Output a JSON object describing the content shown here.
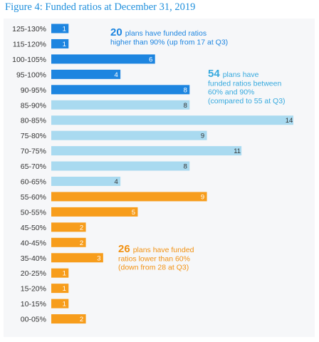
{
  "title": "Figure 4: Funded ratios at December 31, 2019",
  "colors": {
    "above_90": "#1d85e0",
    "between_60_90": "#a9daf0",
    "below_60": "#f79d1c",
    "text_dark": "#333333"
  },
  "chart_data": {
    "type": "bar",
    "orientation": "horizontal",
    "title": "Figure 4: Funded ratios at December 31, 2019",
    "xlabel": "",
    "ylabel": "",
    "xlim": [
      0,
      14
    ],
    "grid": false,
    "categories": [
      "125-130%",
      "115-120%",
      "100-105%",
      "95-100%",
      "90-95%",
      "85-90%",
      "80-85%",
      "75-80%",
      "70-75%",
      "65-70%",
      "60-65%",
      "55-60%",
      "50-55%",
      "45-50%",
      "40-45%",
      "35-40%",
      "20-25%",
      "15-20%",
      "10-15%",
      "00-05%"
    ],
    "values": [
      1,
      1,
      6,
      4,
      8,
      8,
      14,
      9,
      11,
      8,
      4,
      9,
      5,
      2,
      2,
      3,
      1,
      1,
      1,
      2
    ],
    "groups": [
      "above",
      "above",
      "above",
      "above",
      "above",
      "mid",
      "mid",
      "mid",
      "mid",
      "mid",
      "mid",
      "below",
      "below",
      "below",
      "below",
      "below",
      "below",
      "below",
      "below",
      "below"
    ]
  },
  "annotations": [
    {
      "group": "above",
      "number": "20",
      "lines": [
        "plans have funded ratios",
        "higher than 90% (up from 17 at Q3)"
      ]
    },
    {
      "group": "mid",
      "number": "54",
      "lines": [
        "plans have",
        "funded ratios between",
        "60% and 90%",
        "(compared to 55 at Q3)"
      ]
    },
    {
      "group": "below",
      "number": "26",
      "lines": [
        "plans have funded",
        "ratios lower than 60%",
        "(down from 28 at Q3)"
      ]
    }
  ]
}
